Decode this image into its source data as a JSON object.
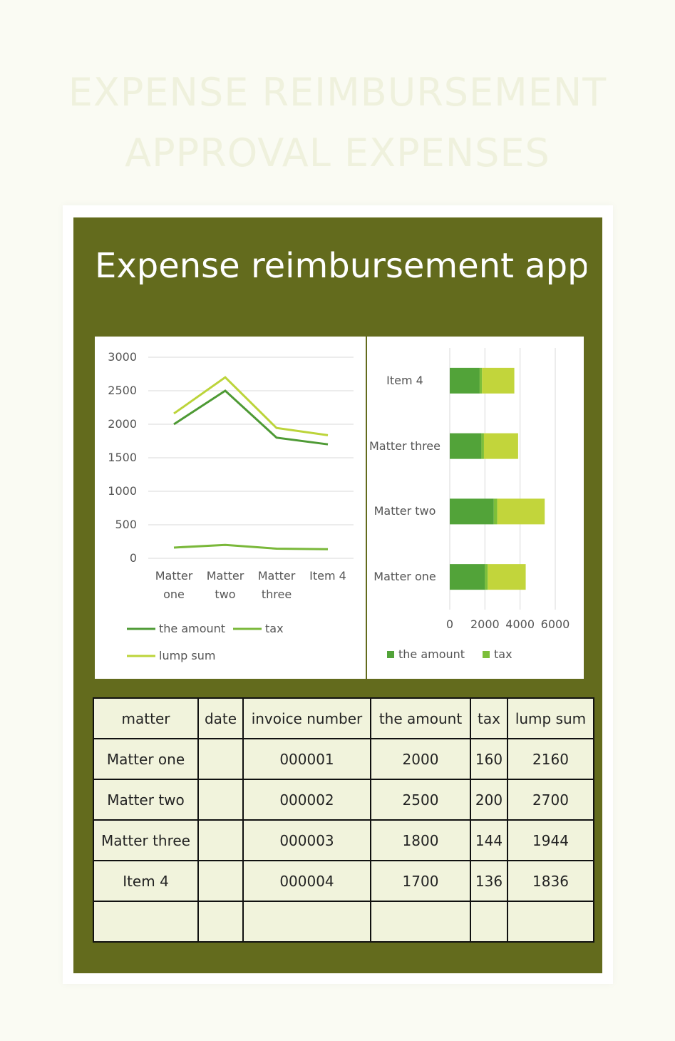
{
  "header": {
    "title_lines": [
      "EXPENSE REIMBURSEMENT",
      "APPROVAL EXPENSES"
    ]
  },
  "panel": {
    "title": "Expense reimbursement appr"
  },
  "chart_data": [
    {
      "type": "line",
      "categories": [
        "Matter one",
        "Matter two",
        "Matter three",
        "Item 4"
      ],
      "series": [
        {
          "name": "the amount",
          "color": "#4e9a35",
          "values": [
            2000,
            2500,
            1800,
            1700
          ]
        },
        {
          "name": "tax",
          "color": "#7ab83a",
          "values": [
            160,
            200,
            144,
            136
          ]
        },
        {
          "name": "lump sum",
          "color": "#bcd43a",
          "values": [
            2160,
            2700,
            1944,
            1836
          ]
        }
      ],
      "ylim": [
        0,
        3000
      ],
      "yticks": [
        0,
        500,
        1000,
        1500,
        2000,
        2500,
        3000
      ],
      "grid": true
    },
    {
      "type": "stacked_hbar",
      "categories": [
        "Matter one",
        "Matter two",
        "Matter three",
        "Item 4"
      ],
      "series": [
        {
          "name": "the amount",
          "color": "#52a339",
          "values": [
            2000,
            2500,
            1800,
            1700
          ]
        },
        {
          "name": "tax",
          "color": "#7cbf3a",
          "values": [
            160,
            200,
            144,
            136
          ]
        },
        {
          "name": "lump sum",
          "color": "#c2d53b",
          "values": [
            2160,
            2700,
            1944,
            1836
          ]
        }
      ],
      "legend_entries": 2,
      "xlim": [
        0,
        6000
      ],
      "xticks": [
        0,
        2000,
        4000,
        6000
      ],
      "grid": true
    }
  ],
  "table": {
    "headers": [
      "matter",
      "date",
      "invoice number",
      "the amount",
      "tax",
      "lump sum"
    ],
    "rows": [
      [
        "Matter one",
        null,
        "000001",
        2000,
        160,
        2160
      ],
      [
        "Matter two",
        null,
        "000002",
        2500,
        200,
        2700
      ],
      [
        "Matter three",
        null,
        "000003",
        1800,
        144,
        1944
      ],
      [
        "Item 4",
        null,
        "000004",
        1700,
        136,
        1836
      ]
    ]
  }
}
